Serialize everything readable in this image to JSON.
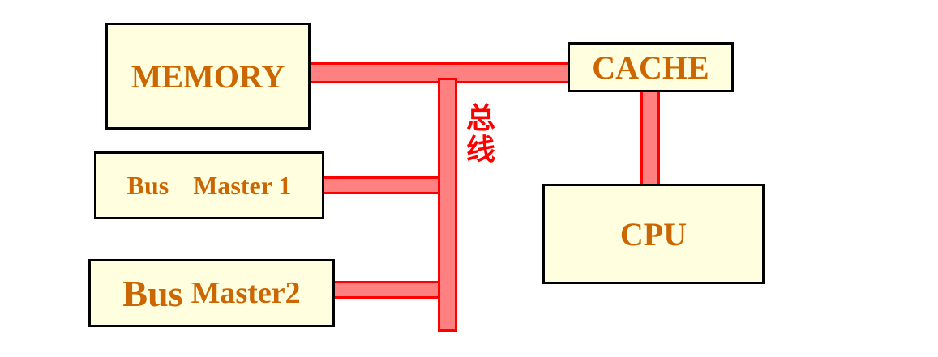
{
  "nodes": {
    "memory": "MEMORY",
    "cache": "CACHE",
    "cpu": "CPU",
    "bus_master_1": {
      "word1": "Bus",
      "word2": "Master 1"
    },
    "bus_master_2": {
      "word1": "Bus",
      "word2": "Master2"
    }
  },
  "bus": {
    "label": "总线"
  },
  "colors": {
    "box_fill": "#FFFFE0",
    "box_border": "#000000",
    "box_text": "#CC6600",
    "bus_fill": "#FF8080",
    "bus_border": "#FF0000",
    "bus_text": "#FF0000"
  }
}
